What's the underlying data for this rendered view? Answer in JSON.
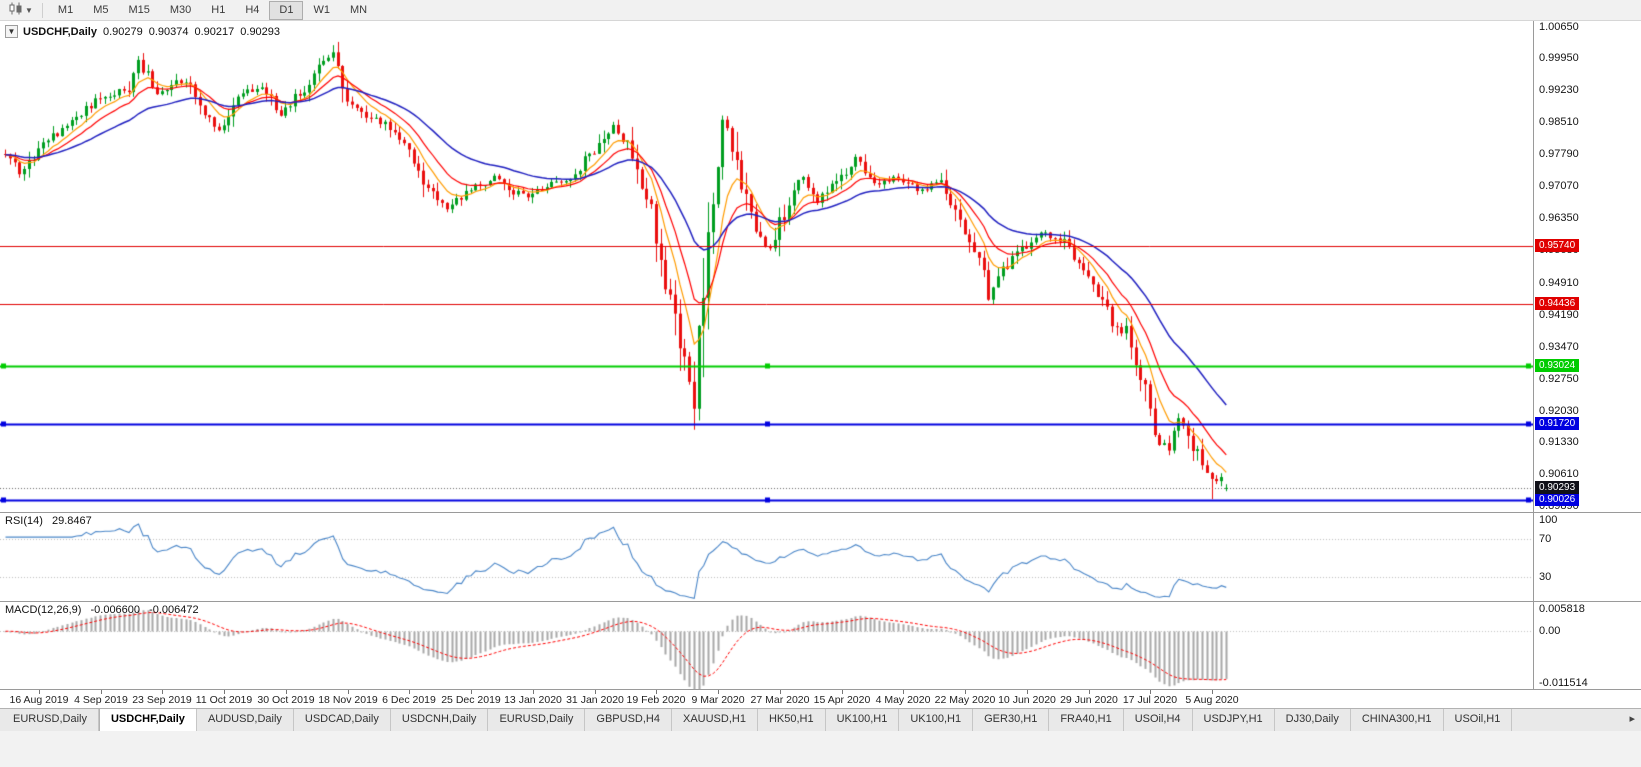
{
  "toolbar": {
    "timeframes": [
      {
        "label": "M1",
        "active": false
      },
      {
        "label": "M5",
        "active": false
      },
      {
        "label": "M15",
        "active": false
      },
      {
        "label": "M30",
        "active": false
      },
      {
        "label": "H1",
        "active": false
      },
      {
        "label": "H4",
        "active": false
      },
      {
        "label": "D1",
        "active": true
      },
      {
        "label": "W1",
        "active": false
      },
      {
        "label": "MN",
        "active": false
      }
    ]
  },
  "chart": {
    "symbol_title": "USDCHF,Daily",
    "ohlc": {
      "open": "0.90279",
      "high": "0.90374",
      "low": "0.90217",
      "close": "0.90293"
    },
    "colors": {
      "up": "#009e20",
      "down": "#ea0f0f",
      "ma_fast": "#ff9b00",
      "ma_mid": "#ff0000",
      "ma_slow": "#2020c0",
      "current_price_line": "#666666"
    },
    "price_axis": {
      "range_min": 0.8975,
      "range_max": 1.0079,
      "ticks": [
        "1.00650",
        "0.99950",
        "0.99230",
        "0.98510",
        "0.97790",
        "0.97070",
        "0.96350",
        "0.95630",
        "0.94910",
        "0.94190",
        "0.93470",
        "0.92750",
        "0.92030",
        "0.91330",
        "0.90610",
        "0.89890"
      ]
    },
    "horizontal_lines": [
      {
        "value": 0.9574,
        "label": "0.95740",
        "color": "#e00000",
        "width": 1,
        "handles": false
      },
      {
        "value": 0.94436,
        "label": "0.94436",
        "color": "#e00000",
        "width": 1,
        "handles": false
      },
      {
        "value": 0.93024,
        "label": "0.93024",
        "color": "#00cc00",
        "width": 2,
        "handles": true
      },
      {
        "value": 0.9172,
        "label": "0.91720",
        "color": "#0000e0",
        "width": 2,
        "handles": true
      },
      {
        "value": 0.90026,
        "label": "0.90026",
        "color": "#0000e0",
        "width": 2,
        "handles": true
      }
    ],
    "current_price": {
      "value": 0.90293,
      "label": "0.90293",
      "box_color": "#101018"
    },
    "date_axis_labels": [
      "16 Aug 2019",
      "4 Sep 2019",
      "23 Sep 2019",
      "11 Oct 2019",
      "30 Oct 2019",
      "18 Nov 2019",
      "6 Dec 2019",
      "25 Dec 2019",
      "13 Jan 2020",
      "31 Jan 2020",
      "19 Feb 2020",
      "9 Mar 2020",
      "27 Mar 2020",
      "15 Apr 2020",
      "4 May 2020",
      "22 May 2020",
      "10 Jun 2020",
      "29 Jun 2020",
      "17 Jul 2020",
      "5 Aug 2020"
    ]
  },
  "indicators": {
    "rsi": {
      "name": "RSI(14)",
      "value": "29.8467",
      "color": "#4a86c8",
      "levels": [
        30,
        70
      ],
      "axis_labels": [
        "100",
        "70",
        "30"
      ]
    },
    "macd": {
      "name": "MACD(12,26,9)",
      "main_value": "-0.006600",
      "signal_value": "-0.006472",
      "histogram_color": "#a8a8a8",
      "signal_color": "#ff0000",
      "axis_labels": [
        "0.005818",
        "0.00",
        "-0.011514"
      ],
      "range_min": -0.011514,
      "range_max": 0.005818
    }
  },
  "chart_data": {
    "type": "candlestick",
    "title": "USDCHF Daily",
    "symbol": "USDCHF",
    "timeframe": "Daily",
    "x_labels": [
      "16 Aug 2019",
      "4 Sep 2019",
      "23 Sep 2019",
      "11 Oct 2019",
      "30 Oct 2019",
      "18 Nov 2019",
      "6 Dec 2019",
      "25 Dec 2019",
      "13 Jan 2020",
      "31 Jan 2020",
      "19 Feb 2020",
      "9 Mar 2020",
      "27 Mar 2020",
      "15 Apr 2020",
      "4 May 2020",
      "22 May 2020",
      "10 Jun 2020",
      "29 Jun 2020",
      "17 Jul 2020",
      "5 Aug 2020"
    ],
    "visible_price_range": [
      0.8975,
      1.0079
    ],
    "candle_count": 258,
    "price_anchors": [
      [
        0,
        0.978
      ],
      [
        3,
        0.9738
      ],
      [
        8,
        0.98
      ],
      [
        14,
        0.9858
      ],
      [
        20,
        0.9905
      ],
      [
        26,
        0.993
      ],
      [
        28,
        0.9988
      ],
      [
        32,
        0.9915
      ],
      [
        38,
        0.995
      ],
      [
        41,
        0.988
      ],
      [
        45,
        0.983
      ],
      [
        50,
        0.9915
      ],
      [
        54,
        0.993
      ],
      [
        58,
        0.987
      ],
      [
        62,
        0.9915
      ],
      [
        67,
        0.9985
      ],
      [
        69,
        1.0005
      ],
      [
        72,
        0.99
      ],
      [
        76,
        0.9868
      ],
      [
        80,
        0.985
      ],
      [
        85,
        0.979
      ],
      [
        90,
        0.9685
      ],
      [
        93,
        0.966
      ],
      [
        98,
        0.97
      ],
      [
        103,
        0.9728
      ],
      [
        106,
        0.97
      ],
      [
        110,
        0.9682
      ],
      [
        114,
        0.971
      ],
      [
        119,
        0.9728
      ],
      [
        124,
        0.979
      ],
      [
        128,
        0.9848
      ],
      [
        132,
        0.978
      ],
      [
        136,
        0.9648
      ],
      [
        140,
        0.945
      ],
      [
        143,
        0.93
      ],
      [
        145,
        0.923
      ],
      [
        147,
        0.949
      ],
      [
        149,
        0.97
      ],
      [
        151,
        0.987
      ],
      [
        154,
        0.9745
      ],
      [
        158,
        0.96
      ],
      [
        161,
        0.956
      ],
      [
        165,
        0.968
      ],
      [
        168,
        0.973
      ],
      [
        171,
        0.9672
      ],
      [
        175,
        0.972
      ],
      [
        179,
        0.9768
      ],
      [
        184,
        0.9712
      ],
      [
        188,
        0.973
      ],
      [
        192,
        0.97
      ],
      [
        197,
        0.9712
      ],
      [
        201,
        0.9625
      ],
      [
        205,
        0.9555
      ],
      [
        207,
        0.9455
      ],
      [
        210,
        0.9518
      ],
      [
        214,
        0.9562
      ],
      [
        218,
        0.9602
      ],
      [
        223,
        0.9588
      ],
      [
        227,
        0.952
      ],
      [
        230,
        0.9462
      ],
      [
        233,
        0.9405
      ],
      [
        236,
        0.9378
      ],
      [
        239,
        0.9282
      ],
      [
        242,
        0.9152
      ],
      [
        245,
        0.9118
      ],
      [
        247,
        0.9188
      ],
      [
        250,
        0.9128
      ],
      [
        252,
        0.9078
      ],
      [
        254,
        0.9058
      ],
      [
        256,
        0.9048
      ],
      [
        257,
        0.90293
      ]
    ],
    "spike_lows": [
      {
        "index": 145,
        "price": 0.916
      },
      {
        "index": 254,
        "price": 0.9004
      }
    ],
    "last_candle": {
      "open": 0.90279,
      "high": 0.90374,
      "low": 0.90217,
      "close": 0.90293
    },
    "moving_averages": [
      {
        "period": 7,
        "color_key": "ma_fast"
      },
      {
        "period": 13,
        "color_key": "ma_mid"
      },
      {
        "period": 30,
        "color_key": "ma_slow"
      }
    ],
    "key_levels": [
      0.9574,
      0.94436,
      0.93024,
      0.9172,
      0.90026
    ],
    "rsi_current": 29.8467,
    "macd_current": {
      "main": -0.0066,
      "signal": -0.006472
    }
  },
  "tabs": {
    "items": [
      {
        "label": "EURUSD,Daily",
        "active": false
      },
      {
        "label": "USDCHF,Daily",
        "active": true
      },
      {
        "label": "AUDUSD,Daily",
        "active": false
      },
      {
        "label": "USDCAD,Daily",
        "active": false
      },
      {
        "label": "USDCNH,Daily",
        "active": false
      },
      {
        "label": "EURUSD,Daily",
        "active": false
      },
      {
        "label": "GBPUSD,H4",
        "active": false
      },
      {
        "label": "XAUUSD,H1",
        "active": false
      },
      {
        "label": "HK50,H1",
        "active": false
      },
      {
        "label": "UK100,H1",
        "active": false
      },
      {
        "label": "UK100,H1",
        "active": false
      },
      {
        "label": "GER30,H1",
        "active": false
      },
      {
        "label": "FRA40,H1",
        "active": false
      },
      {
        "label": "USOil,H4",
        "active": false
      },
      {
        "label": "USDJPY,H1",
        "active": false
      },
      {
        "label": "DJ30,Daily",
        "active": false
      },
      {
        "label": "CHINA300,H1",
        "active": false
      },
      {
        "label": "USOil,H1",
        "active": false
      }
    ],
    "scroll_arrow": "▸"
  }
}
